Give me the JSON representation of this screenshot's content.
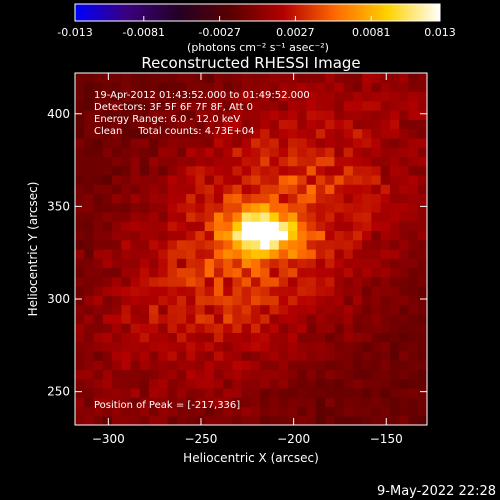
{
  "colors": {
    "background": "#000000",
    "text": "#ffffff",
    "colormap_stops": [
      "#0000ff",
      "#3a007f",
      "#240024",
      "#5a0000",
      "#b40000",
      "#ff6a00",
      "#ffd200",
      "#ffffff"
    ]
  },
  "colorbar": {
    "ticks": [
      "-0.013",
      "-0.0081",
      "-0.0027",
      "0.0027",
      "0.0081",
      "0.013"
    ],
    "unit_label": "(photons cm⁻² s⁻¹ asec⁻²)",
    "range": [
      -0.013,
      0.013
    ]
  },
  "chart_data": {
    "type": "heatmap",
    "title": "Reconstructed RHESSI Image",
    "xlabel": "Heliocentric X (arcsec)",
    "ylabel": "Heliocentric Y (arcsec)",
    "xlim": [
      -318,
      -128
    ],
    "ylim": [
      232,
      422
    ],
    "xticks": [
      -300,
      -250,
      -200,
      -150
    ],
    "yticks": [
      250,
      300,
      350,
      400
    ],
    "peak": [
      -217,
      336
    ],
    "peak_value": 0.013,
    "annotations": [
      "19-Apr-2012 01:43:52.000 to 01:49:52.000",
      "Detectors: 3F 5F 6F 7F 8F, Att 0",
      "Energy Range: 6.0 - 12.0 keV",
      "Clean     Total counts: 4.73E+04",
      "Position of Peak = [-217,336]"
    ]
  },
  "timestamp": "9-May-2022 22:28"
}
